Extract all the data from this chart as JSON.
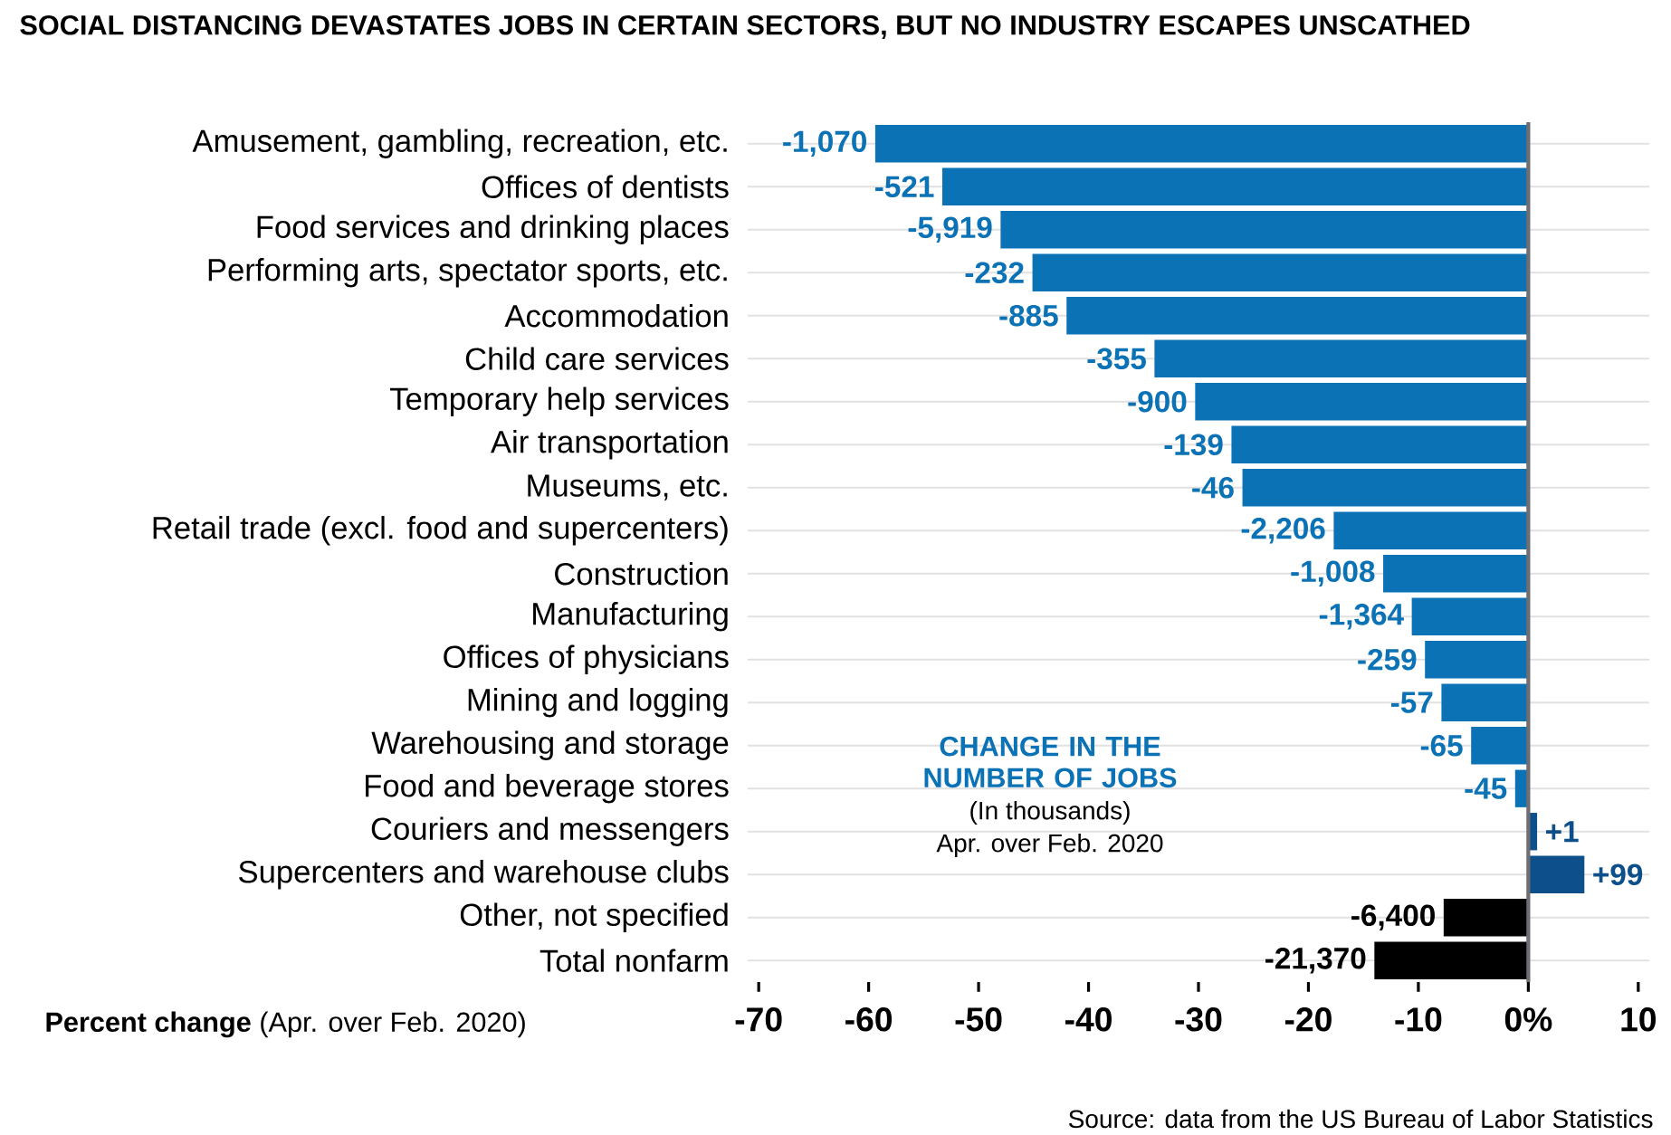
{
  "chart_data": {
    "type": "bar",
    "orientation": "horizontal",
    "title": "SOCIAL DISTANCING DEVASTATES JOBS IN CERTAIN SECTORS, BUT NO INDUSTRY ESCAPES UNSCATHED",
    "xlabel": "**Percent change** (Apr. over Feb. 2020)",
    "categories": [
      "Amusement, gambling, recreation, etc.",
      "Offices of dentists",
      "Food services and drinking places",
      "Performing arts, spectator sports, etc.",
      "Accommodation",
      "Child care services",
      "Temporary help services",
      "Air transportation",
      "Museums, etc.",
      "Retail trade (excl. food and supercenters)",
      "Construction",
      "Manufacturing",
      "Offices of physicians",
      "Mining and logging",
      "Warehousing and storage",
      "Food and beverage stores",
      "Couriers and messengers",
      "Supercenters and warehouse clubs",
      "Other, not specified",
      "Total nonfarm"
    ],
    "values": [
      -59.4,
      -53.3,
      -48.0,
      -45.1,
      -42.0,
      -34.0,
      -30.3,
      -27.0,
      -26.0,
      -17.7,
      -13.2,
      -10.6,
      -9.4,
      -7.9,
      -5.2,
      -1.2,
      0.8,
      5.1,
      -7.7,
      -14.0
    ],
    "colors": [
      "#0a72b5",
      "#0a72b5",
      "#0a72b5",
      "#0a72b5",
      "#0a72b5",
      "#0a72b5",
      "#0a72b5",
      "#0a72b5",
      "#0a72b5",
      "#0a72b5",
      "#0a72b5",
      "#0a72b5",
      "#0a72b5",
      "#0a72b5",
      "#0a72b5",
      "#0a72b5",
      "#0d4f8b",
      "#0d4f8b",
      "#000000",
      "#000000"
    ],
    "xlim": [
      -71,
      11
    ],
    "xticks": [
      -70,
      -60,
      -50,
      -40,
      -30,
      -20,
      -10,
      {
        "value": 0,
        "label": "0%"
      },
      10
    ],
    "grid": "y",
    "ref_lines": [
      {
        "axis": "x",
        "value": 0,
        "color": "#6d6e71"
      }
    ],
    "annotations": [
      "CHANGE IN THE NUMBER OF JOBS",
      "(In thousands)",
      "Apr. over Feb. 2020",
      "Source: data from the US Bureau of Labor Statistics",
      {
        "text": "-1,070",
        "x": -59.4,
        "y": "Amusement, gambling, recreation, etc."
      },
      {
        "text": "-521",
        "x": -53.3,
        "y": "Offices of dentists"
      },
      {
        "text": "-5,919",
        "x": -48.0,
        "y": "Food services and drinking places"
      },
      {
        "text": "-232",
        "x": -45.1,
        "y": "Performing arts, spectator sports, etc."
      },
      {
        "text": "-885",
        "x": -42.0,
        "y": "Accommodation"
      },
      {
        "text": "-355",
        "x": -34.0,
        "y": "Child care services"
      },
      {
        "text": "-900",
        "x": -30.3,
        "y": "Temporary help services"
      },
      {
        "text": "-139",
        "x": -27.0,
        "y": "Air transportation"
      },
      {
        "text": "-46",
        "x": -26.0,
        "y": "Museums, etc."
      },
      {
        "text": "-2,206",
        "x": -17.7,
        "y": "Retail trade (excl. food and supercenters)"
      },
      {
        "text": "-1,008",
        "x": -13.2,
        "y": "Construction"
      },
      {
        "text": "-1,364",
        "x": -10.6,
        "y": "Manufacturing"
      },
      {
        "text": "-259",
        "x": -9.4,
        "y": "Offices of physicians"
      },
      {
        "text": "-57",
        "x": -7.9,
        "y": "Mining and logging"
      },
      {
        "text": "-65",
        "x": -5.2,
        "y": "Warehousing and storage"
      },
      {
        "text": "-45",
        "x": -1.2,
        "y": "Food and beverage stores"
      },
      {
        "text": "+1",
        "x": 0.8,
        "y": "Couriers and messengers"
      },
      {
        "text": "+99",
        "x": 5.1,
        "y": "Supercenters and warehouse clubs"
      },
      {
        "text": "-6,400",
        "x": -7.7,
        "y": "Other, not specified"
      },
      {
        "text": "-21,370",
        "x": -14.0,
        "y": "Total nonfarm"
      }
    ]
  }
}
